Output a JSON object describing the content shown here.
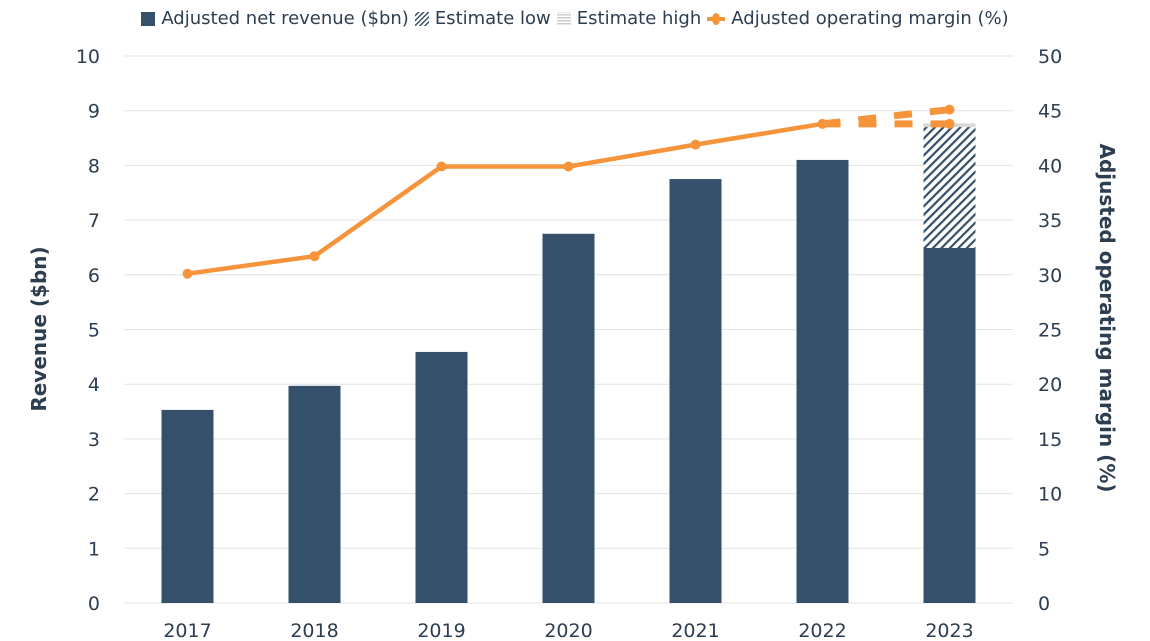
{
  "chart_data": {
    "type": "bar+line",
    "categories": [
      "2017",
      "2018",
      "2019",
      "2020",
      "2021",
      "2022",
      "2023"
    ],
    "series": [
      {
        "name": "Adjusted net revenue ($bn)",
        "type": "bar",
        "axis": "left",
        "values": [
          3.53,
          3.97,
          4.59,
          6.75,
          7.75,
          8.1,
          6.49
        ]
      },
      {
        "name": "Estimate low",
        "type": "bar-stack-hatched",
        "axis": "left",
        "values": [
          null,
          null,
          null,
          null,
          null,
          null,
          8.7
        ]
      },
      {
        "name": "Estimate high",
        "type": "bar-stack-striped",
        "axis": "left",
        "values": [
          null,
          null,
          null,
          null,
          null,
          null,
          8.77
        ]
      },
      {
        "name": "Adjusted operating margin (%)",
        "type": "line",
        "axis": "right",
        "values": [
          30.1,
          31.7,
          39.9,
          39.9,
          41.9,
          43.8,
          null
        ],
        "projection_2023": {
          "low": 43.8,
          "high": 45.1
        },
        "projection_style": "dashed"
      }
    ],
    "ylabel": "Revenue ($bn)",
    "y2label": "Adjusted operating margin (%)",
    "ylim": [
      0,
      10
    ],
    "y2lim": [
      0,
      50
    ],
    "yticks": [
      "0",
      "1",
      "2",
      "3",
      "4",
      "5",
      "6",
      "7",
      "8",
      "9",
      "10"
    ],
    "y2ticks": [
      "0",
      "5",
      "10",
      "15",
      "20",
      "25",
      "30",
      "35",
      "40",
      "45",
      "50"
    ],
    "grid": true,
    "legend": "top",
    "colors": {
      "bar": "#34506b",
      "line": "#f5943a",
      "grid": "#e3e3e3",
      "text": "#2d3e50",
      "estimate_high": "#d9d9d9"
    }
  }
}
